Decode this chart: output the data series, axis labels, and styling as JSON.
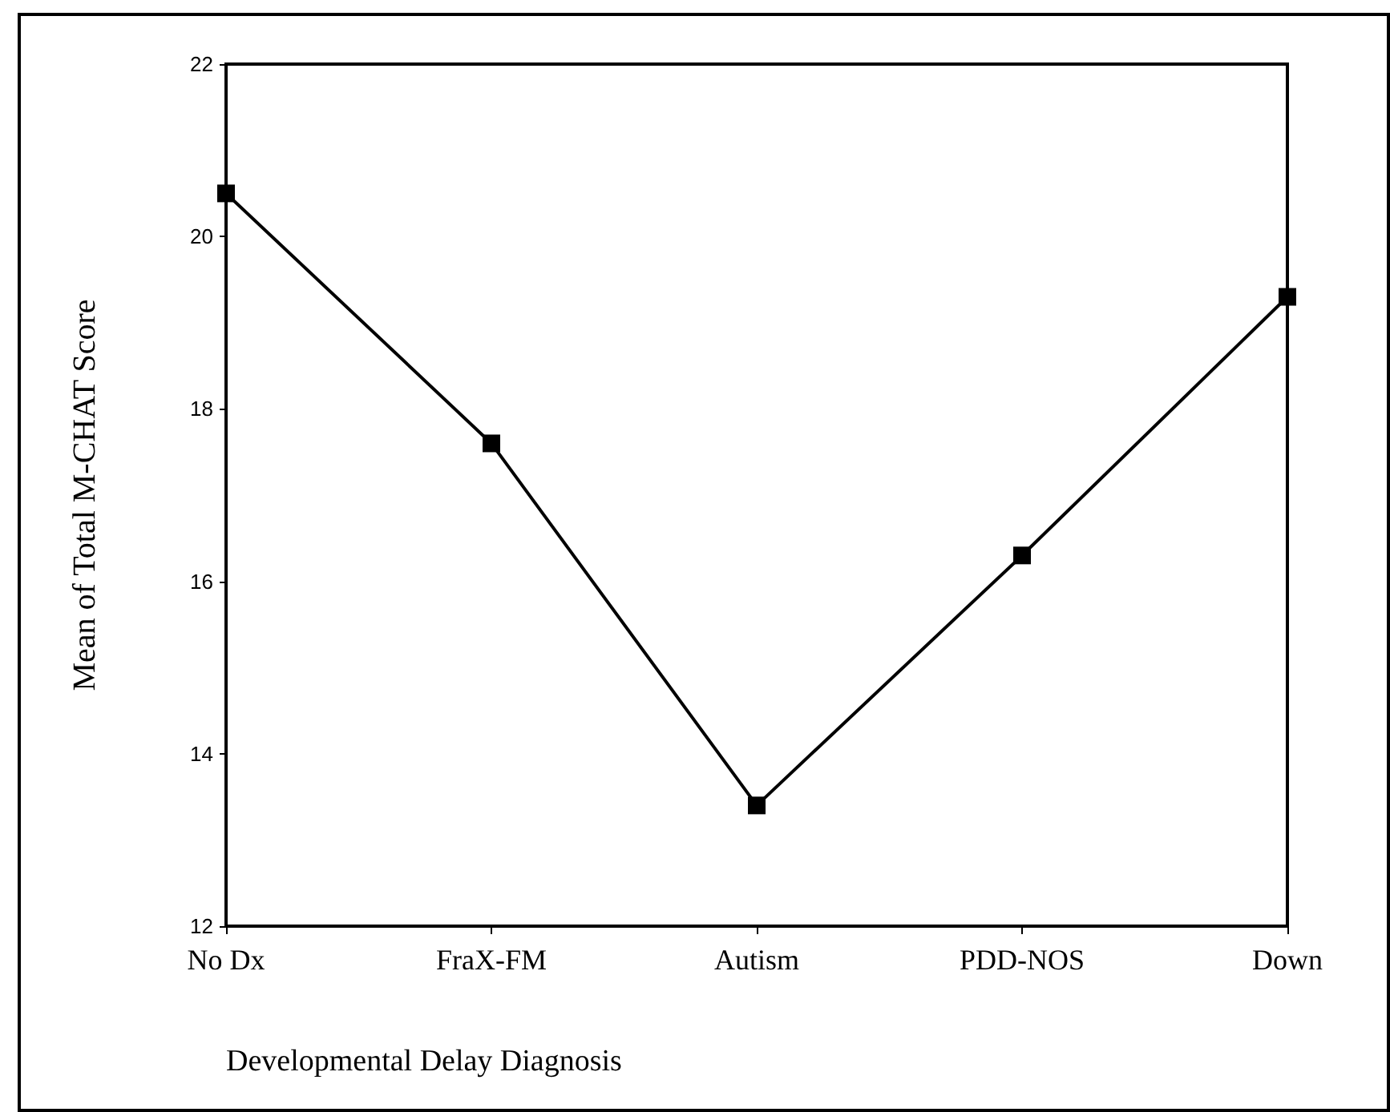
{
  "chart_data": {
    "type": "line",
    "xlabel": "Developmental Delay Diagnosis",
    "ylabel": "Mean of Total M-CHAT Score",
    "categories": [
      "No Dx",
      "FraX-FM",
      "Autism",
      "PDD-NOS",
      "Down"
    ],
    "series": [
      {
        "color": "#000000",
        "values": [
          20.5,
          17.6,
          13.4,
          16.3,
          19.3
        ]
      }
    ],
    "ylim": [
      12,
      22
    ],
    "yticks": [
      12,
      14,
      16,
      18,
      20,
      22
    ],
    "grid": false,
    "marker": "square",
    "line_style": "solid"
  }
}
